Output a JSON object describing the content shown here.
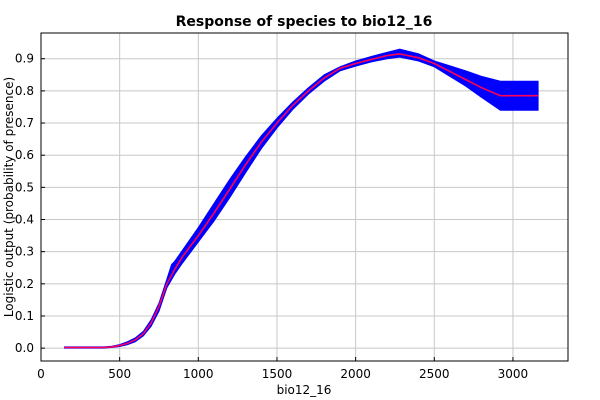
{
  "chart_data": {
    "type": "area",
    "title": "Response of species to bio12_16",
    "xlabel": "bio12_16",
    "ylabel": "Logistic output (probability of presence)",
    "xlim": [
      0,
      3350
    ],
    "ylim": [
      -0.04,
      0.98
    ],
    "x_ticks": [
      0,
      500,
      1000,
      1500,
      2000,
      2500,
      3000
    ],
    "y_ticks": [
      0.0,
      0.1,
      0.2,
      0.3,
      0.4,
      0.5,
      0.6,
      0.7,
      0.8,
      0.9
    ],
    "grid": true,
    "colors": {
      "mean_line": "#ff0055",
      "band": "#0000ff"
    },
    "series": [
      {
        "role": "mean",
        "x": [
          150,
          400,
          450,
          500,
          550,
          600,
          650,
          700,
          750,
          800,
          850,
          900,
          1000,
          1100,
          1200,
          1300,
          1400,
          1500,
          1600,
          1700,
          1800,
          1900,
          2000,
          2100,
          2200,
          2280,
          2400,
          2500,
          2600,
          2700,
          2800,
          2920,
          3000,
          3160
        ],
        "y": [
          0.002,
          0.002,
          0.004,
          0.008,
          0.015,
          0.026,
          0.045,
          0.078,
          0.13,
          0.2,
          0.245,
          0.285,
          0.35,
          0.42,
          0.495,
          0.57,
          0.64,
          0.7,
          0.755,
          0.8,
          0.84,
          0.87,
          0.885,
          0.898,
          0.91,
          0.915,
          0.903,
          0.885,
          0.86,
          0.835,
          0.81,
          0.785,
          0.785,
          0.785
        ]
      },
      {
        "role": "upper",
        "x": [
          150,
          400,
          450,
          500,
          550,
          600,
          650,
          700,
          750,
          800,
          830,
          850,
          900,
          1000,
          1100,
          1200,
          1300,
          1400,
          1500,
          1600,
          1700,
          1800,
          1900,
          2000,
          2100,
          2200,
          2280,
          2400,
          2500,
          2600,
          2700,
          2800,
          2920,
          3000,
          3160
        ],
        "y": [
          0.004,
          0.004,
          0.006,
          0.011,
          0.02,
          0.032,
          0.052,
          0.088,
          0.14,
          0.215,
          0.26,
          0.27,
          0.305,
          0.375,
          0.45,
          0.525,
          0.595,
          0.66,
          0.715,
          0.765,
          0.81,
          0.85,
          0.875,
          0.893,
          0.907,
          0.92,
          0.93,
          0.915,
          0.893,
          0.878,
          0.862,
          0.845,
          0.83,
          0.83,
          0.83
        ]
      },
      {
        "role": "lower",
        "x": [
          150,
          400,
          450,
          500,
          550,
          600,
          650,
          700,
          750,
          800,
          850,
          900,
          1000,
          1100,
          1200,
          1300,
          1400,
          1500,
          1600,
          1700,
          1800,
          1900,
          2000,
          2100,
          2200,
          2280,
          2400,
          2500,
          2600,
          2700,
          2800,
          2920,
          3000,
          3160
        ],
        "y": [
          0.0,
          0.0,
          0.002,
          0.005,
          0.011,
          0.02,
          0.038,
          0.068,
          0.115,
          0.188,
          0.23,
          0.265,
          0.33,
          0.395,
          0.468,
          0.545,
          0.62,
          0.685,
          0.742,
          0.79,
          0.83,
          0.862,
          0.877,
          0.89,
          0.9,
          0.905,
          0.893,
          0.875,
          0.845,
          0.815,
          0.78,
          0.74,
          0.74,
          0.74
        ]
      }
    ]
  }
}
